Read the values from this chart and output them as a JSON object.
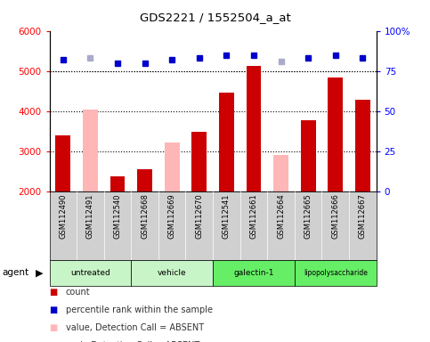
{
  "title": "GDS2221 / 1552504_a_at",
  "samples": [
    "GSM112490",
    "GSM112491",
    "GSM112540",
    "GSM112668",
    "GSM112669",
    "GSM112670",
    "GSM112541",
    "GSM112661",
    "GSM112664",
    "GSM112665",
    "GSM112666",
    "GSM112667"
  ],
  "bar_values": [
    3400,
    4050,
    2380,
    2560,
    3220,
    3480,
    4450,
    5120,
    2920,
    3770,
    4830,
    4280
  ],
  "bar_absent": [
    false,
    true,
    false,
    false,
    true,
    false,
    false,
    false,
    true,
    false,
    false,
    false
  ],
  "percentile_vals": [
    82,
    83,
    80,
    80,
    82,
    83,
    85,
    85,
    81,
    83,
    85,
    83
  ],
  "percentile_absent": [
    false,
    true,
    false,
    false,
    false,
    false,
    false,
    false,
    true,
    false,
    false,
    false
  ],
  "groups": [
    {
      "label": "untreated",
      "start": 0,
      "end": 3
    },
    {
      "label": "vehicle",
      "start": 3,
      "end": 6
    },
    {
      "label": "galectin-1",
      "start": 6,
      "end": 9
    },
    {
      "label": "lipopolysaccharide",
      "start": 9,
      "end": 12
    }
  ],
  "group_colors": [
    "#c8f5c8",
    "#c8f5c8",
    "#66ee66",
    "#66ee66"
  ],
  "ylim_left": [
    2000,
    6000
  ],
  "ylim_right": [
    0,
    100
  ],
  "right_ticks": [
    0,
    25,
    50,
    75,
    100
  ],
  "right_labels": [
    "0",
    "25",
    "50",
    "75",
    "100%"
  ],
  "left_ticks": [
    2000,
    3000,
    4000,
    5000,
    6000
  ],
  "dotted_lines": [
    3000,
    4000,
    5000
  ],
  "bar_color_present": "#cc0000",
  "bar_color_absent": "#ffb6b6",
  "dot_color_present": "#0000cc",
  "dot_color_absent": "#aaaacc",
  "bar_width": 0.55,
  "legend_items": [
    {
      "label": "count",
      "color": "#cc0000"
    },
    {
      "label": "percentile rank within the sample",
      "color": "#0000cc"
    },
    {
      "label": "value, Detection Call = ABSENT",
      "color": "#ffb6b6"
    },
    {
      "label": "rank, Detection Call = ABSENT",
      "color": "#aaaacc"
    }
  ],
  "agent_label": "agent"
}
